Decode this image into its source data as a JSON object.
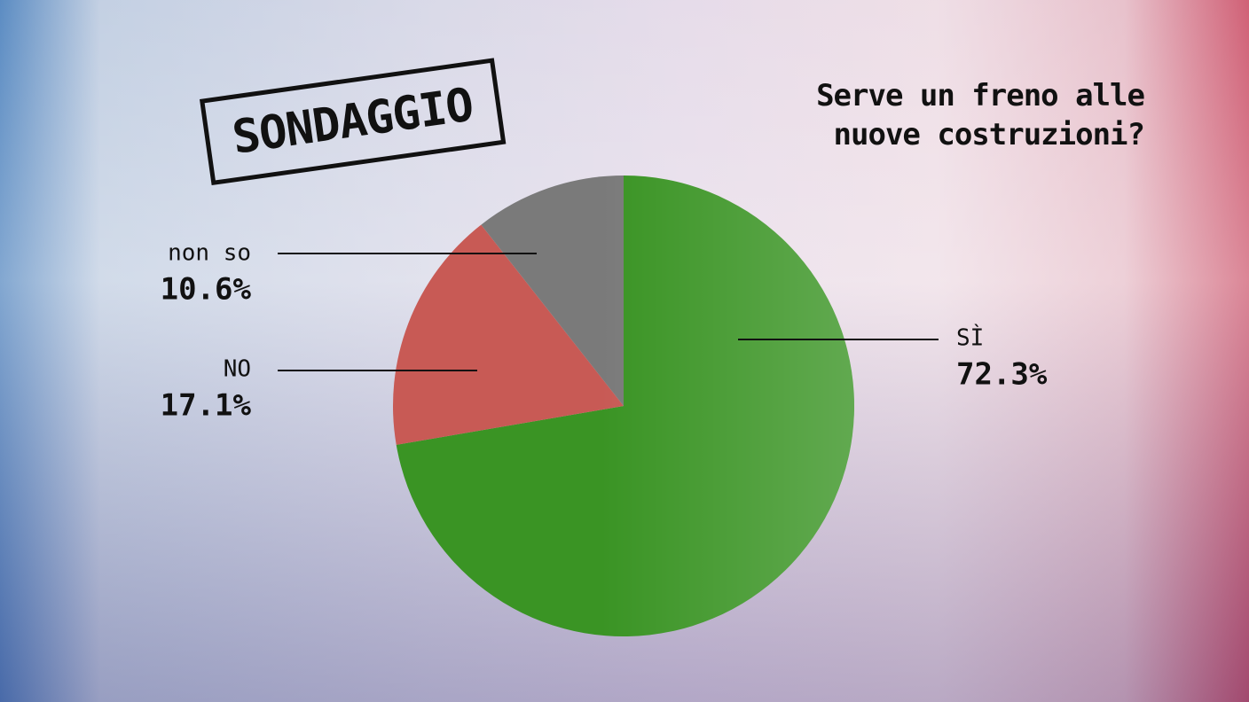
{
  "chart_data": {
    "type": "pie",
    "badge": "SONDAGGIO",
    "title": "Serve un freno alle nuove costruzioni?",
    "categories": [
      "SÌ",
      "NO",
      "non so"
    ],
    "values": [
      72.3,
      17.1,
      10.6
    ],
    "value_labels": [
      "72.3%",
      "17.1%",
      "10.6%"
    ],
    "colors": [
      "#3a9424",
      "#c85a55",
      "#7a7a7a"
    ]
  }
}
